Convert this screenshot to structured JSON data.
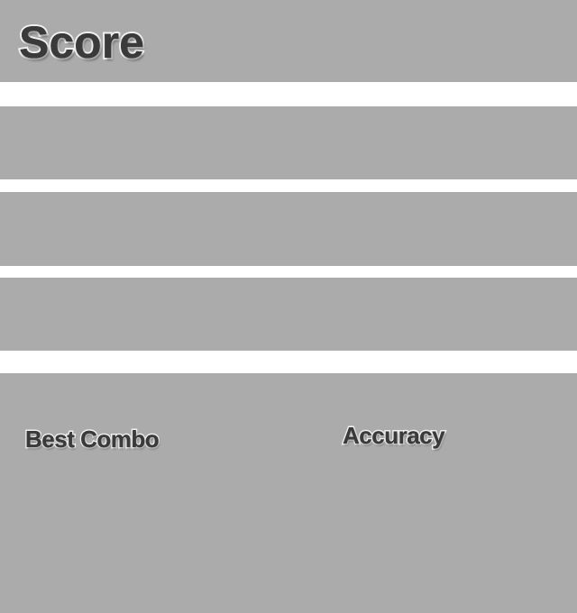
{
  "colors": {
    "panel": "#ababab",
    "background": "#ffffff",
    "label_fill": "#3a3a3a",
    "label_outline": "#f0f0f0"
  },
  "header": {
    "title": "Score"
  },
  "footer": {
    "best_combo_label": "Best Combo",
    "accuracy_label": "Accuracy"
  }
}
